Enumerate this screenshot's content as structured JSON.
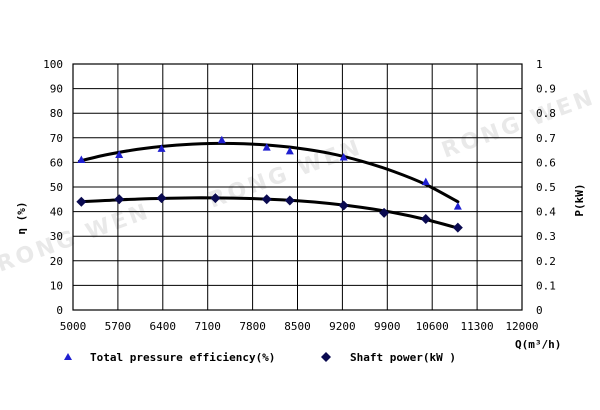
{
  "chart_data": {
    "type": "scatter",
    "watermark": "RONG WEN",
    "x": {
      "label": "Q(m³/h)",
      "range": [
        5000,
        12000
      ],
      "ticks": [
        5000,
        5700,
        6400,
        7100,
        7800,
        8500,
        9200,
        9900,
        10600,
        11300,
        12000
      ]
    },
    "y_left": {
      "label": "η (%)",
      "range": [
        0,
        100
      ],
      "ticks": [
        0,
        10,
        20,
        30,
        40,
        50,
        60,
        70,
        80,
        90,
        100
      ]
    },
    "y_right": {
      "label": "P(kW)",
      "range": [
        0,
        1
      ],
      "ticks": [
        "0",
        "0.1",
        "0.2",
        "0.3",
        "0.4",
        "0.5",
        "0.6",
        "0.7",
        "0.8",
        "0.9",
        "1"
      ]
    },
    "grid": true,
    "legend_position": "bottom",
    "series": [
      {
        "name": "Total pressure efficiency(%)",
        "axis": "left",
        "marker": "triangle",
        "color": "#1f1fd0",
        "points": [
          [
            5130,
            61
          ],
          [
            5720,
            63
          ],
          [
            6380,
            65.5
          ],
          [
            7320,
            69
          ],
          [
            8020,
            66
          ],
          [
            8380,
            64.5
          ],
          [
            9220,
            62
          ],
          [
            10500,
            52
          ],
          [
            11000,
            42
          ]
        ],
        "fit": [
          [
            5100,
            60.5
          ],
          [
            5500,
            63
          ],
          [
            6000,
            65.3
          ],
          [
            6500,
            66.8
          ],
          [
            7000,
            67.6
          ],
          [
            7500,
            67.7
          ],
          [
            8000,
            67.1
          ],
          [
            8500,
            65.8
          ],
          [
            9000,
            63.7
          ],
          [
            9500,
            60.5
          ],
          [
            10000,
            56.3
          ],
          [
            10500,
            51
          ],
          [
            11000,
            44
          ]
        ]
      },
      {
        "name": "Shaft power(kW )",
        "axis": "right",
        "marker": "diamond",
        "color": "#0a0a50",
        "points": [
          [
            5130,
            0.44
          ],
          [
            5720,
            0.45
          ],
          [
            6380,
            0.455
          ],
          [
            7220,
            0.455
          ],
          [
            8020,
            0.45
          ],
          [
            8380,
            0.445
          ],
          [
            9220,
            0.425
          ],
          [
            9850,
            0.395
          ],
          [
            10500,
            0.37
          ],
          [
            11000,
            0.335
          ]
        ],
        "fit": [
          [
            5100,
            0.44
          ],
          [
            5500,
            0.445
          ],
          [
            6000,
            0.451
          ],
          [
            6500,
            0.454
          ],
          [
            7000,
            0.456
          ],
          [
            7500,
            0.455
          ],
          [
            8000,
            0.451
          ],
          [
            8500,
            0.444
          ],
          [
            9000,
            0.433
          ],
          [
            9500,
            0.417
          ],
          [
            10000,
            0.396
          ],
          [
            10500,
            0.368
          ],
          [
            11000,
            0.333
          ]
        ]
      }
    ]
  }
}
